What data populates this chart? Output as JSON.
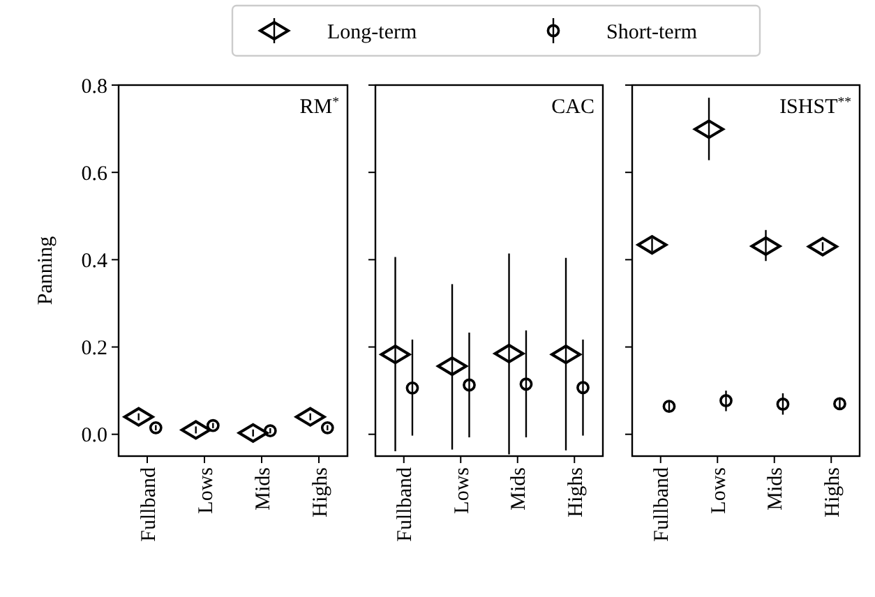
{
  "chart_data": [
    {
      "type": "scatter",
      "title": "RM$^{*}$",
      "ylabel": "Panning",
      "categories": [
        "Fullband",
        "Lows",
        "Mids",
        "Highs"
      ],
      "ylim": [
        -0.05,
        0.8
      ],
      "yticks": [
        {
          "value": 0,
          "label": "0.0"
        },
        {
          "value": 0.2,
          "label": "0.2"
        },
        {
          "value": 0.4,
          "label": "0.4"
        },
        {
          "value": 0.6,
          "label": "0.6"
        },
        {
          "value": 0.8,
          "label": "0.8"
        }
      ],
      "legend": "top",
      "grid": false,
      "series": [
        {
          "name": "Long-term",
          "color": "#000000",
          "marker": "diamond",
          "values": [
            0.04,
            0.01,
            0.003,
            0.04
          ],
          "errors": [
            0.008,
            0.008,
            0.008,
            0.008
          ]
        },
        {
          "name": "Short-term",
          "color": "#000000",
          "marker": "circle",
          "values": [
            0.015,
            0.02,
            0.008,
            0.015
          ],
          "errors": [
            0.006,
            0.006,
            0.006,
            0.006
          ]
        }
      ]
    },
    {
      "type": "scatter",
      "title": "CAC",
      "categories": [
        "Fullband",
        "Lows",
        "Mids",
        "Highs"
      ],
      "ylim": [
        -0.05,
        0.8
      ],
      "yticks": [
        0,
        0.2,
        0.4,
        0.6,
        0.8
      ],
      "tick_labels": "x",
      "legend": false,
      "grid": false,
      "series": [
        {
          "color": "#000000",
          "marker": "diamond",
          "values": [
            0.183,
            0.156,
            0.185,
            0.183
          ],
          "errors": [
            [
              -0.039,
              0.406
            ],
            [
              -0.035,
              0.344
            ],
            [
              -0.046,
              0.414
            ],
            [
              -0.037,
              0.404
            ]
          ]
        },
        {
          "color": "#000000",
          "marker": "circle",
          "values": [
            0.106,
            0.113,
            0.115,
            0.107
          ],
          "errors": [
            [
              -0.003,
              0.217
            ],
            [
              -0.007,
              0.233
            ],
            [
              -0.007,
              0.238
            ],
            [
              -0.003,
              0.217
            ]
          ]
        }
      ]
    },
    {
      "type": "scatter",
      "title": "ISHST$^{**}$",
      "categories": [
        "Fullband",
        "Lows",
        "Mids",
        "Highs"
      ],
      "ylim": [
        -0.05,
        0.8
      ],
      "yticks": [
        0,
        0.2,
        0.4,
        0.6,
        0.8
      ],
      "tick_labels": "x",
      "legend": false,
      "grid": false,
      "series": [
        {
          "color": "#000000",
          "marker": "diamond",
          "values": [
            0.434,
            0.699,
            0.431,
            0.43
          ],
          "errors": [
            0.015,
            [
              0.628,
              0.771
            ],
            [
              0.397,
              0.468
            ],
            0.01
          ]
        },
        {
          "color": "#000000",
          "marker": "circle",
          "values": [
            0.064,
            0.077,
            0.069,
            0.07
          ],
          "errors": [
            0.01,
            [
              0.053,
              0.1
            ],
            [
              0.045,
              0.094
            ],
            0.01
          ]
        }
      ]
    }
  ]
}
